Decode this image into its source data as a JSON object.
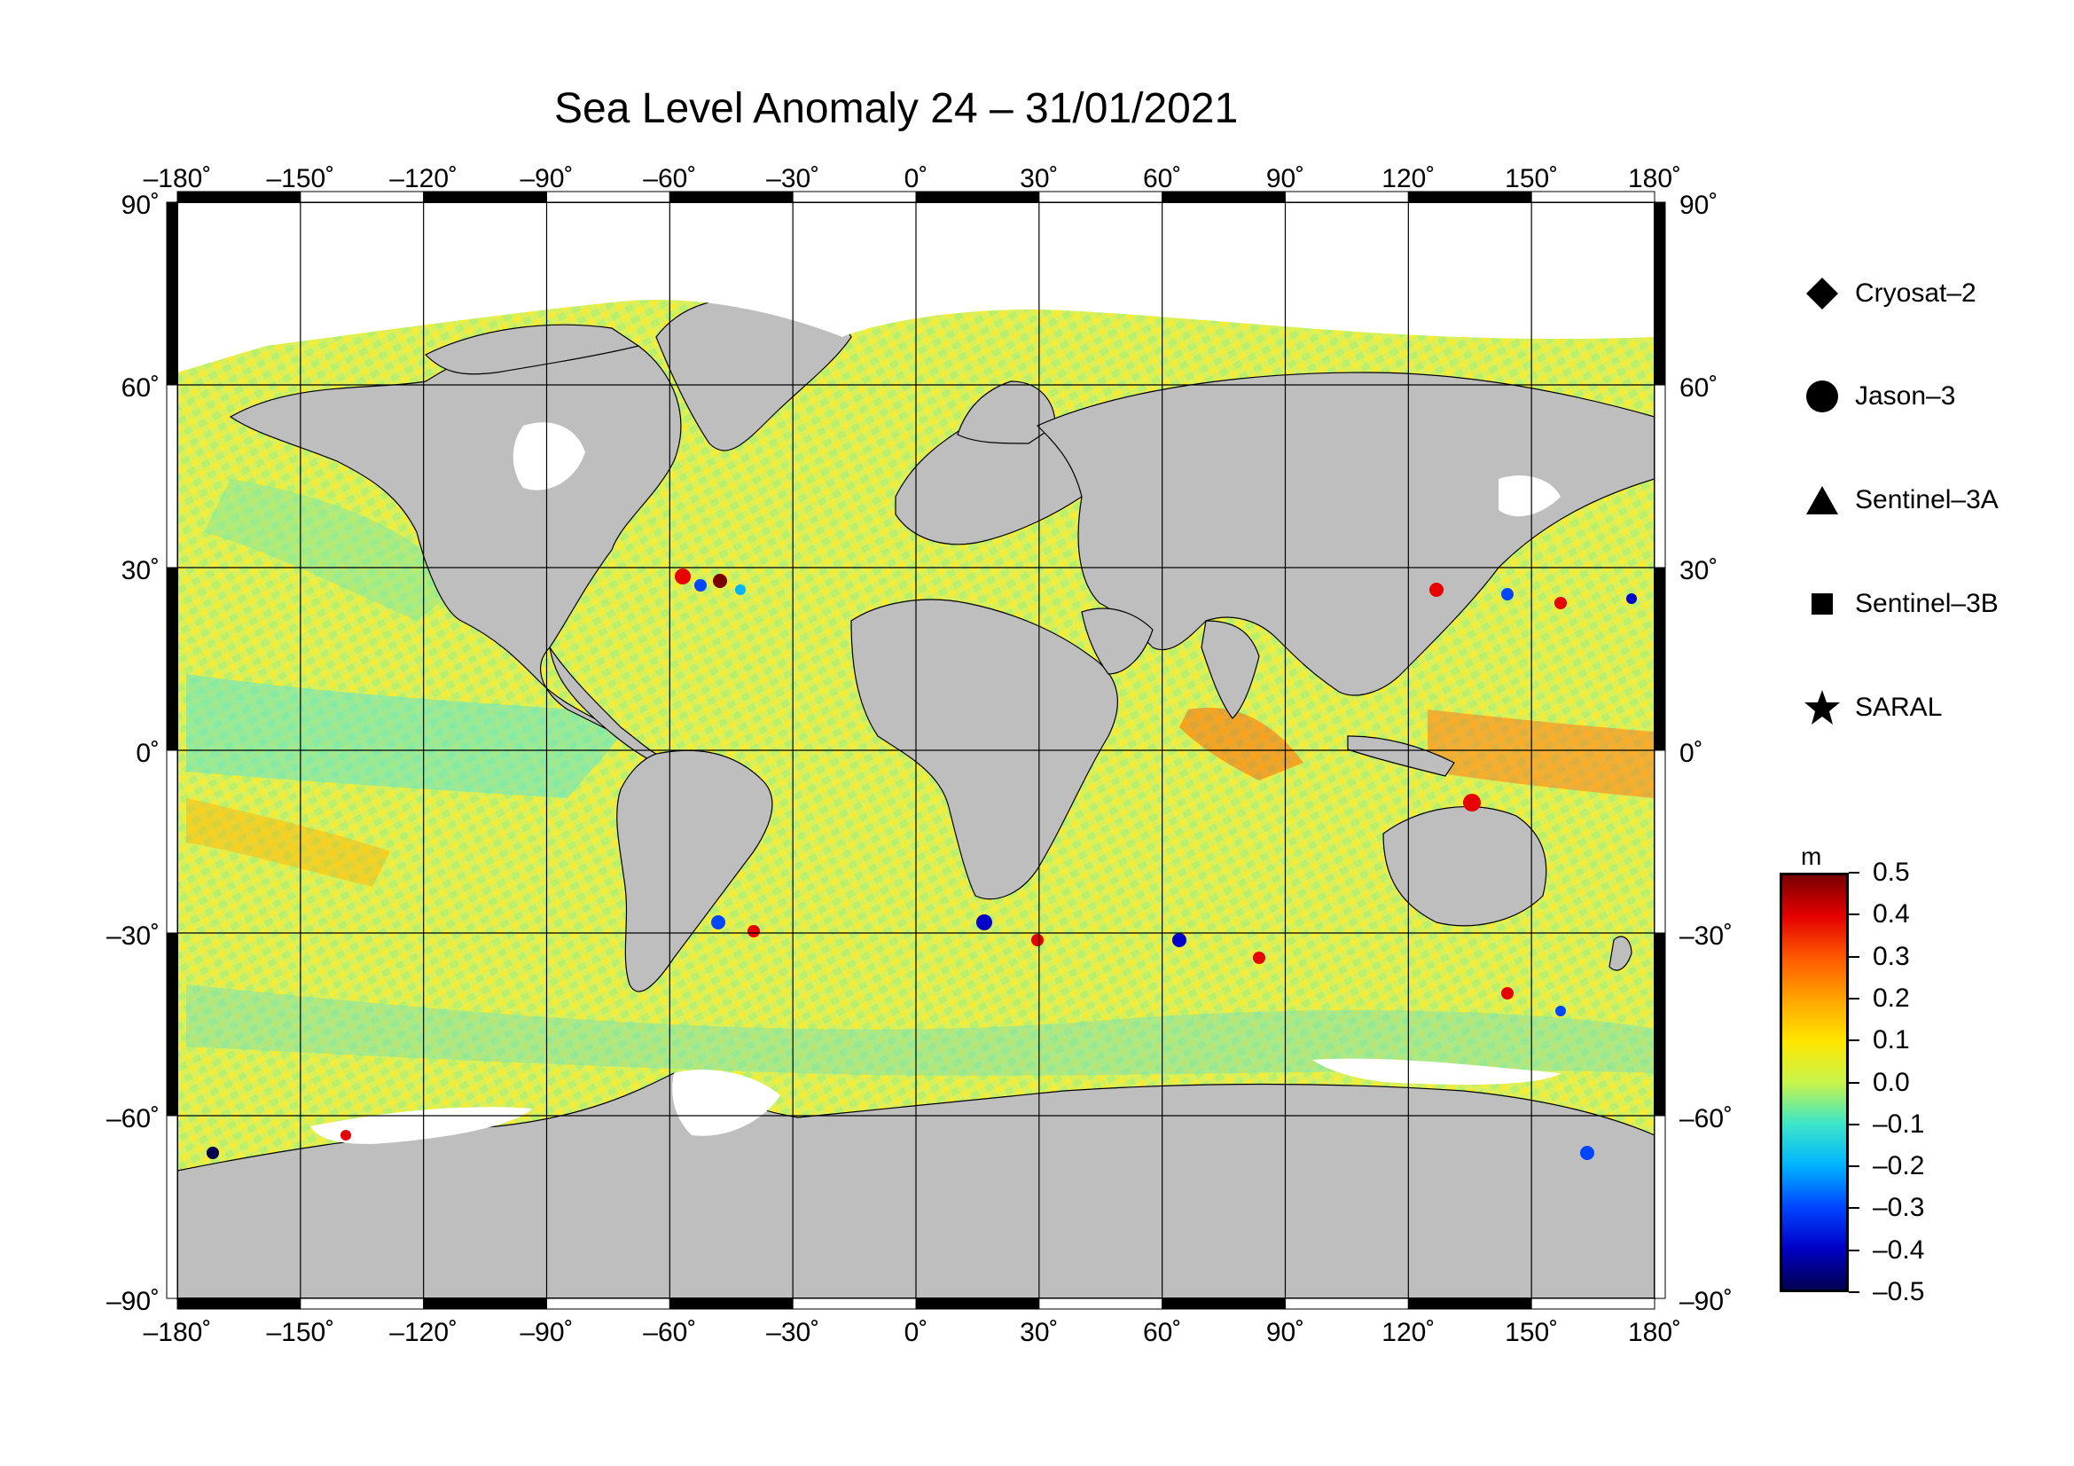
{
  "title": "Sea Level Anomaly 24 – 31/01/2021",
  "map": {
    "projection": "equirectangular",
    "lon_range": [
      -180,
      180
    ],
    "lat_range": [
      -90,
      90
    ],
    "grid_spacing": 30,
    "frame": "alternating black-white border",
    "land_color": "#bebebe",
    "ice_color": "#ffffff",
    "lon_labels": [
      "–180˚",
      "–150˚",
      "–120˚",
      "–90˚",
      "–60˚",
      "–30˚",
      "0˚",
      "30˚",
      "60˚",
      "90˚",
      "120˚",
      "150˚",
      "180˚"
    ],
    "lat_labels": [
      "90˚",
      "60˚",
      "30˚",
      "0˚",
      "–30˚",
      "–60˚",
      "–90˚"
    ],
    "lat_values": [
      90,
      60,
      30,
      0,
      -30,
      -60,
      -90
    ],
    "lon_values": [
      -180,
      -150,
      -120,
      -90,
      -60,
      -30,
      0,
      30,
      60,
      90,
      120,
      150,
      180
    ]
  },
  "legend": [
    {
      "symbol": "diamond",
      "label": "Cryosat–2"
    },
    {
      "symbol": "circle",
      "label": "Jason–3"
    },
    {
      "symbol": "triangle",
      "label": "Sentinel–3A"
    },
    {
      "symbol": "square",
      "label": "Sentinel–3B"
    },
    {
      "symbol": "star",
      "label": "SARAL"
    }
  ],
  "colorbar": {
    "unit": "m",
    "min": -0.5,
    "max": 0.5,
    "tick_labels": [
      "0.5",
      "0.4",
      "0.3",
      "0.2",
      "0.1",
      "0.0",
      "–0.1",
      "–0.2",
      "–0.3",
      "–0.4",
      "–0.5"
    ],
    "colors": [
      "#7a0000",
      "#e60000",
      "#ff5a00",
      "#ffa500",
      "#ffe600",
      "#c8f54b",
      "#3ce6c8",
      "#00b4ff",
      "#0046ff",
      "#0000c8",
      "#000050"
    ]
  }
}
